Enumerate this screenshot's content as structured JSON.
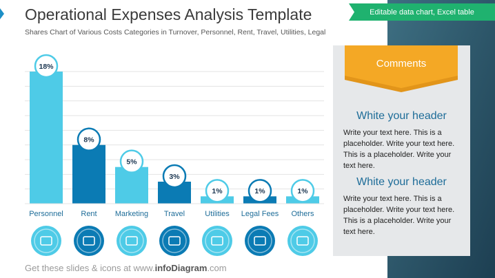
{
  "header": {
    "title": "Operational Expenses Analysis Template",
    "subtitle": "Shares Chart of Various Costs Categories in Turnover, Personnel, Rent, Travel, Utilities, Legal"
  },
  "tag": "Editable data chart, Excel table",
  "chart_data": {
    "type": "bar",
    "categories": [
      "Personnel",
      "Rent",
      "Marketing",
      "Travel",
      "Utilities",
      "Legal Fees",
      "Others"
    ],
    "values": [
      18,
      8,
      5,
      3,
      1,
      1,
      1
    ],
    "value_labels": [
      "18%",
      "8%",
      "5%",
      "3%",
      "1%",
      "1%",
      "1%"
    ],
    "colors": [
      "#4ecbe7",
      "#0b7bb4",
      "#4ecbe7",
      "#0b7bb4",
      "#4ecbe7",
      "#0b7bb4",
      "#4ecbe7"
    ],
    "ylim": [
      0,
      18
    ],
    "yticks": [
      0,
      2,
      4,
      6,
      8,
      10,
      12,
      14,
      16,
      18
    ],
    "grid": true
  },
  "comments": {
    "title": "Comments",
    "sections": [
      {
        "header": "White your header",
        "text": "Write your text here. This is a placeholder. Write your text here. This is a placeholder. Write your text here."
      },
      {
        "header": "White your header",
        "text": "Write your text here. This is a placeholder. Write your text here. This is a placeholder. Write your text here."
      }
    ]
  },
  "footer": {
    "parts": [
      "Get these slides & icons at www.",
      "infoDiagram",
      ".com"
    ]
  }
}
